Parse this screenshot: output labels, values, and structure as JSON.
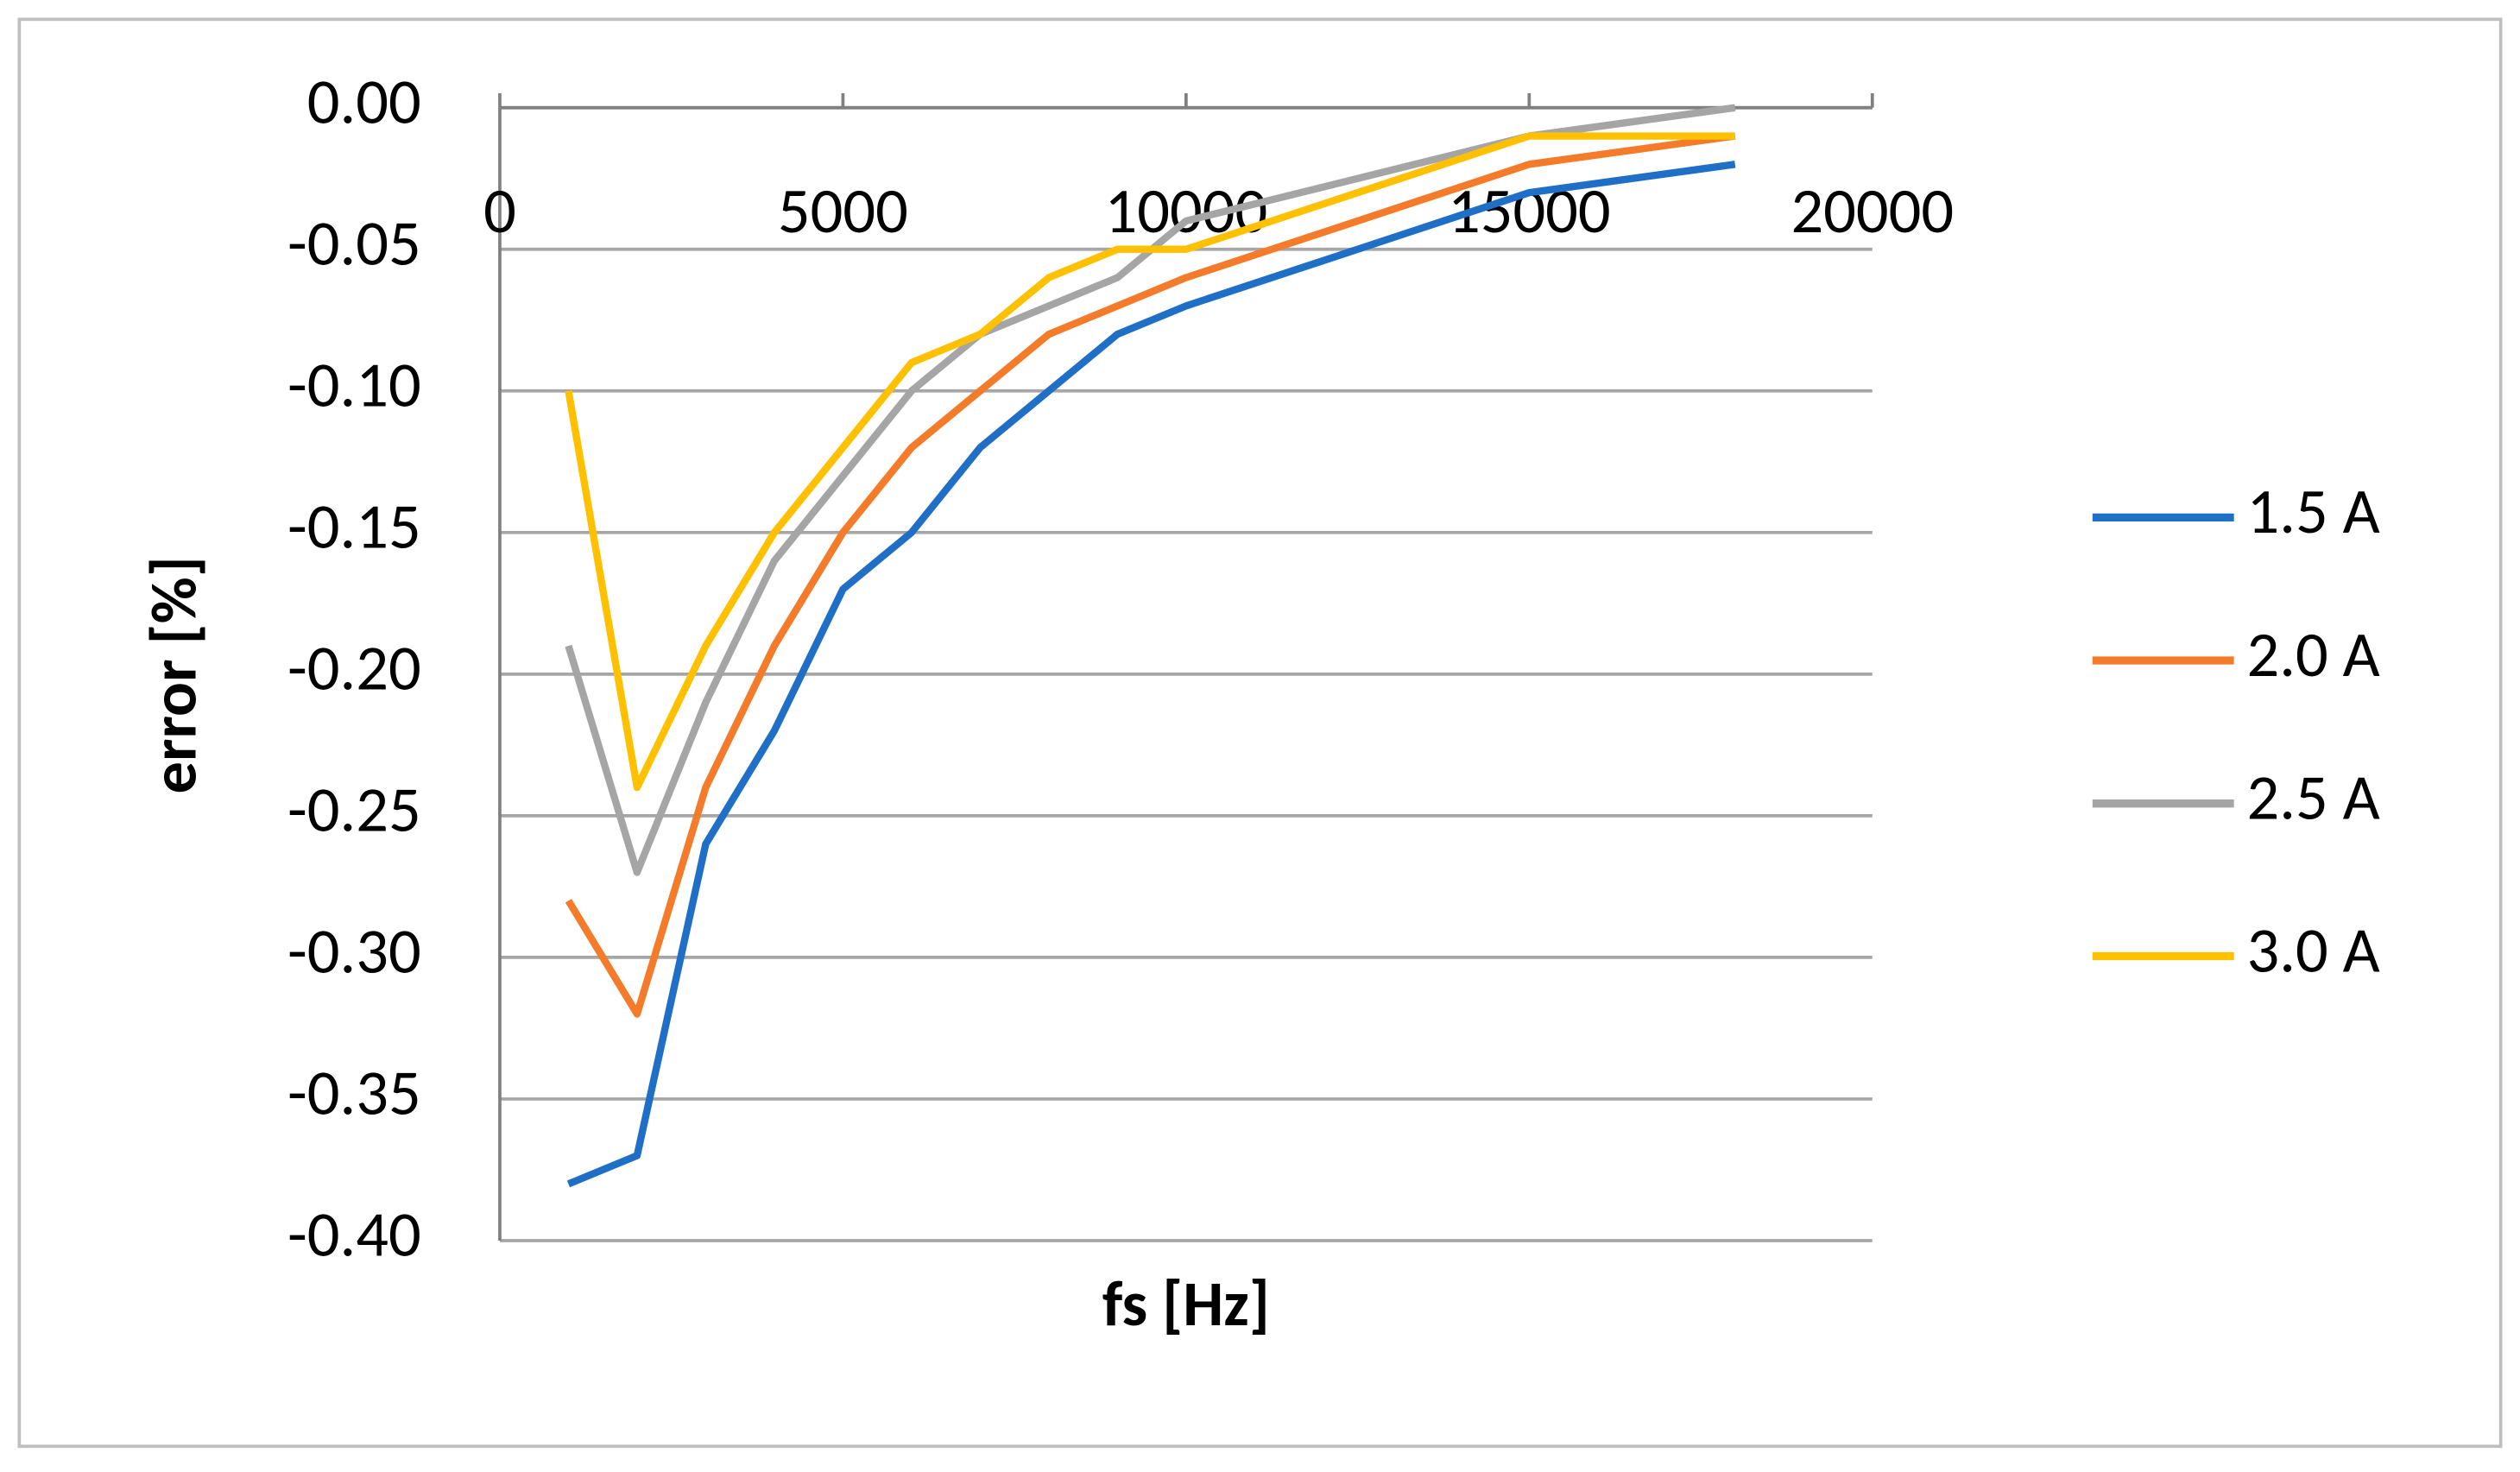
{
  "chart_data": {
    "type": "line",
    "x_label": "fs [Hz]",
    "y_label": "error [%]",
    "x": [
      1000,
      2000,
      3000,
      4000,
      5000,
      6000,
      7000,
      8000,
      9000,
      10000,
      15000,
      18000
    ],
    "series": [
      {
        "name": "1.5 A",
        "color": "#1f6fc6",
        "values": [
          -0.38,
          -0.37,
          -0.26,
          -0.22,
          -0.17,
          -0.15,
          -0.12,
          -0.1,
          -0.08,
          -0.07,
          -0.03,
          -0.02
        ]
      },
      {
        "name": "2.0 A",
        "color": "#f47b2a",
        "values": [
          -0.28,
          -0.32,
          -0.24,
          -0.19,
          -0.15,
          -0.12,
          -0.1,
          -0.08,
          -0.07,
          -0.06,
          -0.02,
          -0.01
        ]
      },
      {
        "name": "2.5 A",
        "color": "#a5a5a5",
        "values": [
          -0.19,
          -0.27,
          -0.21,
          -0.16,
          -0.13,
          -0.1,
          -0.08,
          -0.07,
          -0.06,
          -0.04,
          -0.01,
          0.0
        ]
      },
      {
        "name": "3.0 A",
        "color": "#ffc000",
        "values": [
          -0.1,
          -0.24,
          -0.19,
          -0.15,
          -0.12,
          -0.09,
          -0.08,
          -0.06,
          -0.05,
          -0.05,
          -0.01,
          -0.01
        ]
      }
    ],
    "xlim": [
      0,
      20000
    ],
    "xticks": [
      0,
      5000,
      10000,
      15000,
      20000
    ],
    "ylim": [
      -0.4,
      0.0
    ],
    "yticks": [
      {
        "value": 0.0,
        "label": "0.00"
      },
      {
        "value": -0.05,
        "label": "-0.05"
      },
      {
        "value": -0.1,
        "label": "-0.10"
      },
      {
        "value": -0.15,
        "label": "-0.15"
      },
      {
        "value": -0.2,
        "label": "-0.20"
      },
      {
        "value": -0.25,
        "label": "-0.25"
      },
      {
        "value": -0.3,
        "label": "-0.30"
      },
      {
        "value": -0.35,
        "label": "-0.35"
      },
      {
        "value": -0.4,
        "label": "-0.40"
      }
    ],
    "grid": true,
    "legend": "right"
  }
}
